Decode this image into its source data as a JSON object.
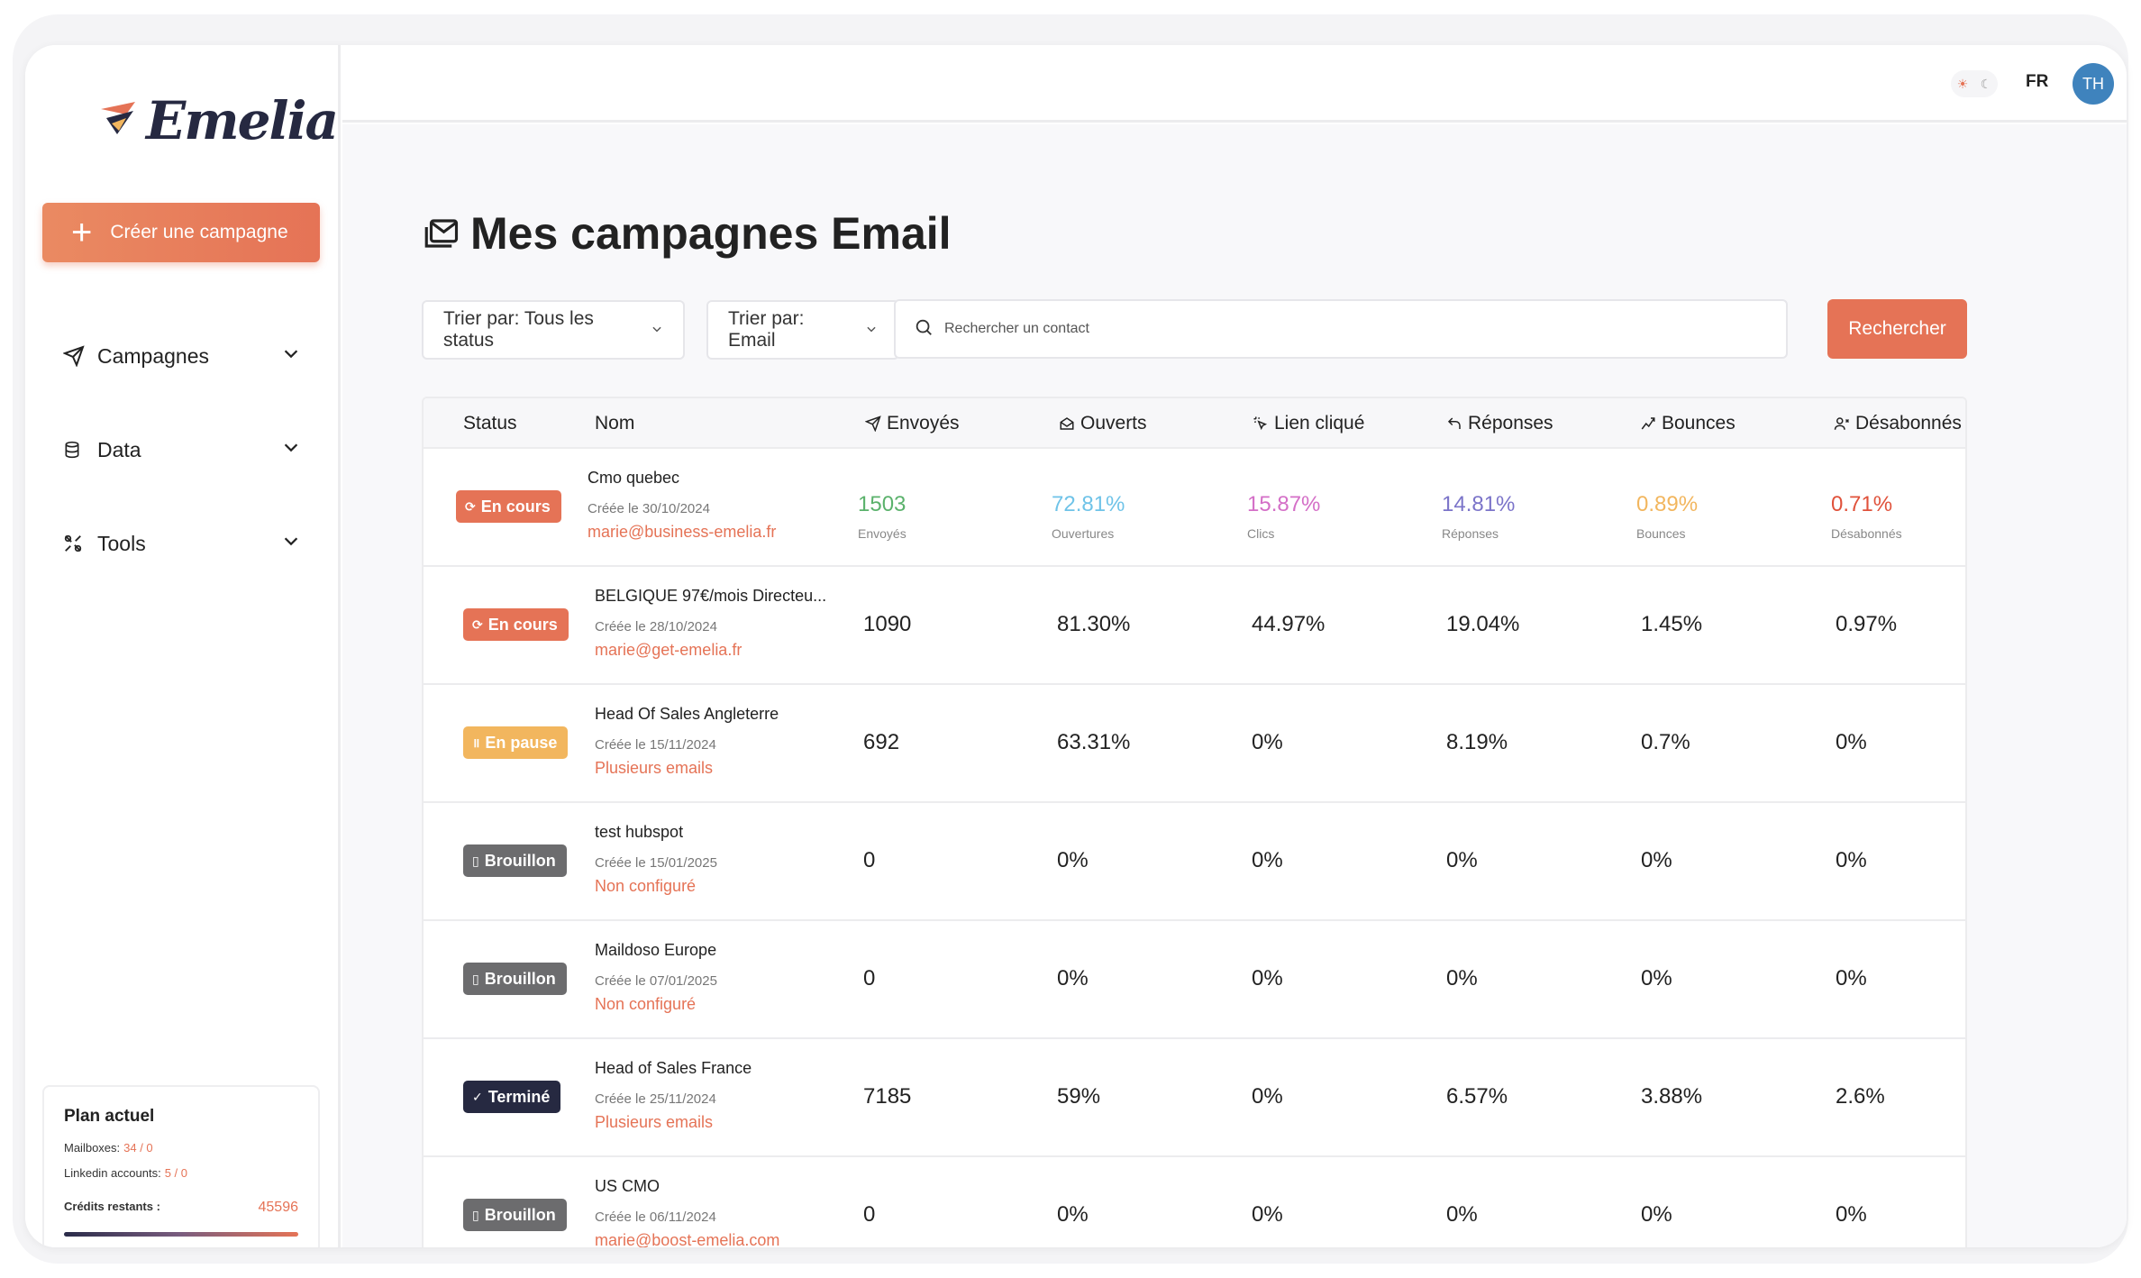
{
  "sidebar": {
    "logo_text": "Emelia",
    "create_label": "Créer une campagne",
    "nav": [
      {
        "label": "Campagnes",
        "icon": "send-icon"
      },
      {
        "label": "Data",
        "icon": "database-icon"
      },
      {
        "label": "Tools",
        "icon": "tools-icon"
      }
    ],
    "plan": {
      "title": "Plan actuel",
      "mailboxes_label": "Mailboxes:",
      "mailboxes_value": "34 / 0",
      "linkedin_label": "Linkedin accounts:",
      "linkedin_value": "5 / 0",
      "credits_label": "Crédits restants :",
      "credits_value": "45596"
    }
  },
  "topbar": {
    "lang": "FR",
    "avatar_initials": "TH"
  },
  "main": {
    "title": "Mes campagnes Email",
    "filter_status": "Trier par: Tous les status",
    "filter_type": "Trier par: Email",
    "search_placeholder": "Rechercher un contact",
    "search_button": "Rechercher"
  },
  "table": {
    "headers": [
      "Status",
      "Nom",
      "Envoyés",
      "Ouverts",
      "Lien cliqué",
      "Réponses",
      "Bounces",
      "Désabonnés"
    ],
    "first_row_sublabels": [
      "Envoyés",
      "Ouvertures",
      "Clics",
      "Réponses",
      "Bounces",
      "Désabonnés"
    ],
    "rows": [
      {
        "status": "En cours",
        "name": "Cmo quebec",
        "date": "Créée le 30/10/2024",
        "email": "marie@business-emelia.fr",
        "sent": "1503",
        "opened": "72.81%",
        "clicked": "15.87%",
        "replies": "14.81%",
        "bounces": "0.89%",
        "unsub": "0.71%"
      },
      {
        "status": "En cours",
        "name": "BELGIQUE 97€/mois Directeu...",
        "date": "Créée le 28/10/2024",
        "email": "marie@get-emelia.fr",
        "sent": "1090",
        "opened": "81.30%",
        "clicked": "44.97%",
        "replies": "19.04%",
        "bounces": "1.45%",
        "unsub": "0.97%"
      },
      {
        "status": "En pause",
        "name": "Head Of Sales Angleterre",
        "date": "Créée le 15/11/2024",
        "email": "Plusieurs emails",
        "sent": "692",
        "opened": "63.31%",
        "clicked": "0%",
        "replies": "8.19%",
        "bounces": "0.7%",
        "unsub": "0%"
      },
      {
        "status": "Brouillon",
        "name": "test hubspot",
        "date": "Créée le 15/01/2025",
        "email": "Non configuré",
        "sent": "0",
        "opened": "0%",
        "clicked": "0%",
        "replies": "0%",
        "bounces": "0%",
        "unsub": "0%"
      },
      {
        "status": "Brouillon",
        "name": "Maildoso Europe",
        "date": "Créée le 07/01/2025",
        "email": "Non configuré",
        "sent": "0",
        "opened": "0%",
        "clicked": "0%",
        "replies": "0%",
        "bounces": "0%",
        "unsub": "0%"
      },
      {
        "status": "Terminé",
        "name": "Head of Sales France",
        "date": "Créée le 25/11/2024",
        "email": "Plusieurs emails",
        "sent": "7185",
        "opened": "59%",
        "clicked": "0%",
        "replies": "6.57%",
        "bounces": "3.88%",
        "unsub": "2.6%"
      },
      {
        "status": "Brouillon",
        "name": "US CMO",
        "date": "Créée le 06/11/2024",
        "email": "marie@boost-emelia.com",
        "sent": "0",
        "opened": "0%",
        "clicked": "0%",
        "replies": "0%",
        "bounces": "0%",
        "unsub": "0%"
      }
    ]
  },
  "colors": {
    "accent": "#e57356",
    "paused": "#f2b65e",
    "draft": "#6c6c6e",
    "done": "#262941",
    "metric_sent": "#5bb26c",
    "metric_open": "#6fc3e8",
    "metric_click": "#d46fc7",
    "metric_reply": "#7b74c9",
    "metric_bounce": "#f2b65e",
    "metric_unsub": "#e0523b"
  }
}
